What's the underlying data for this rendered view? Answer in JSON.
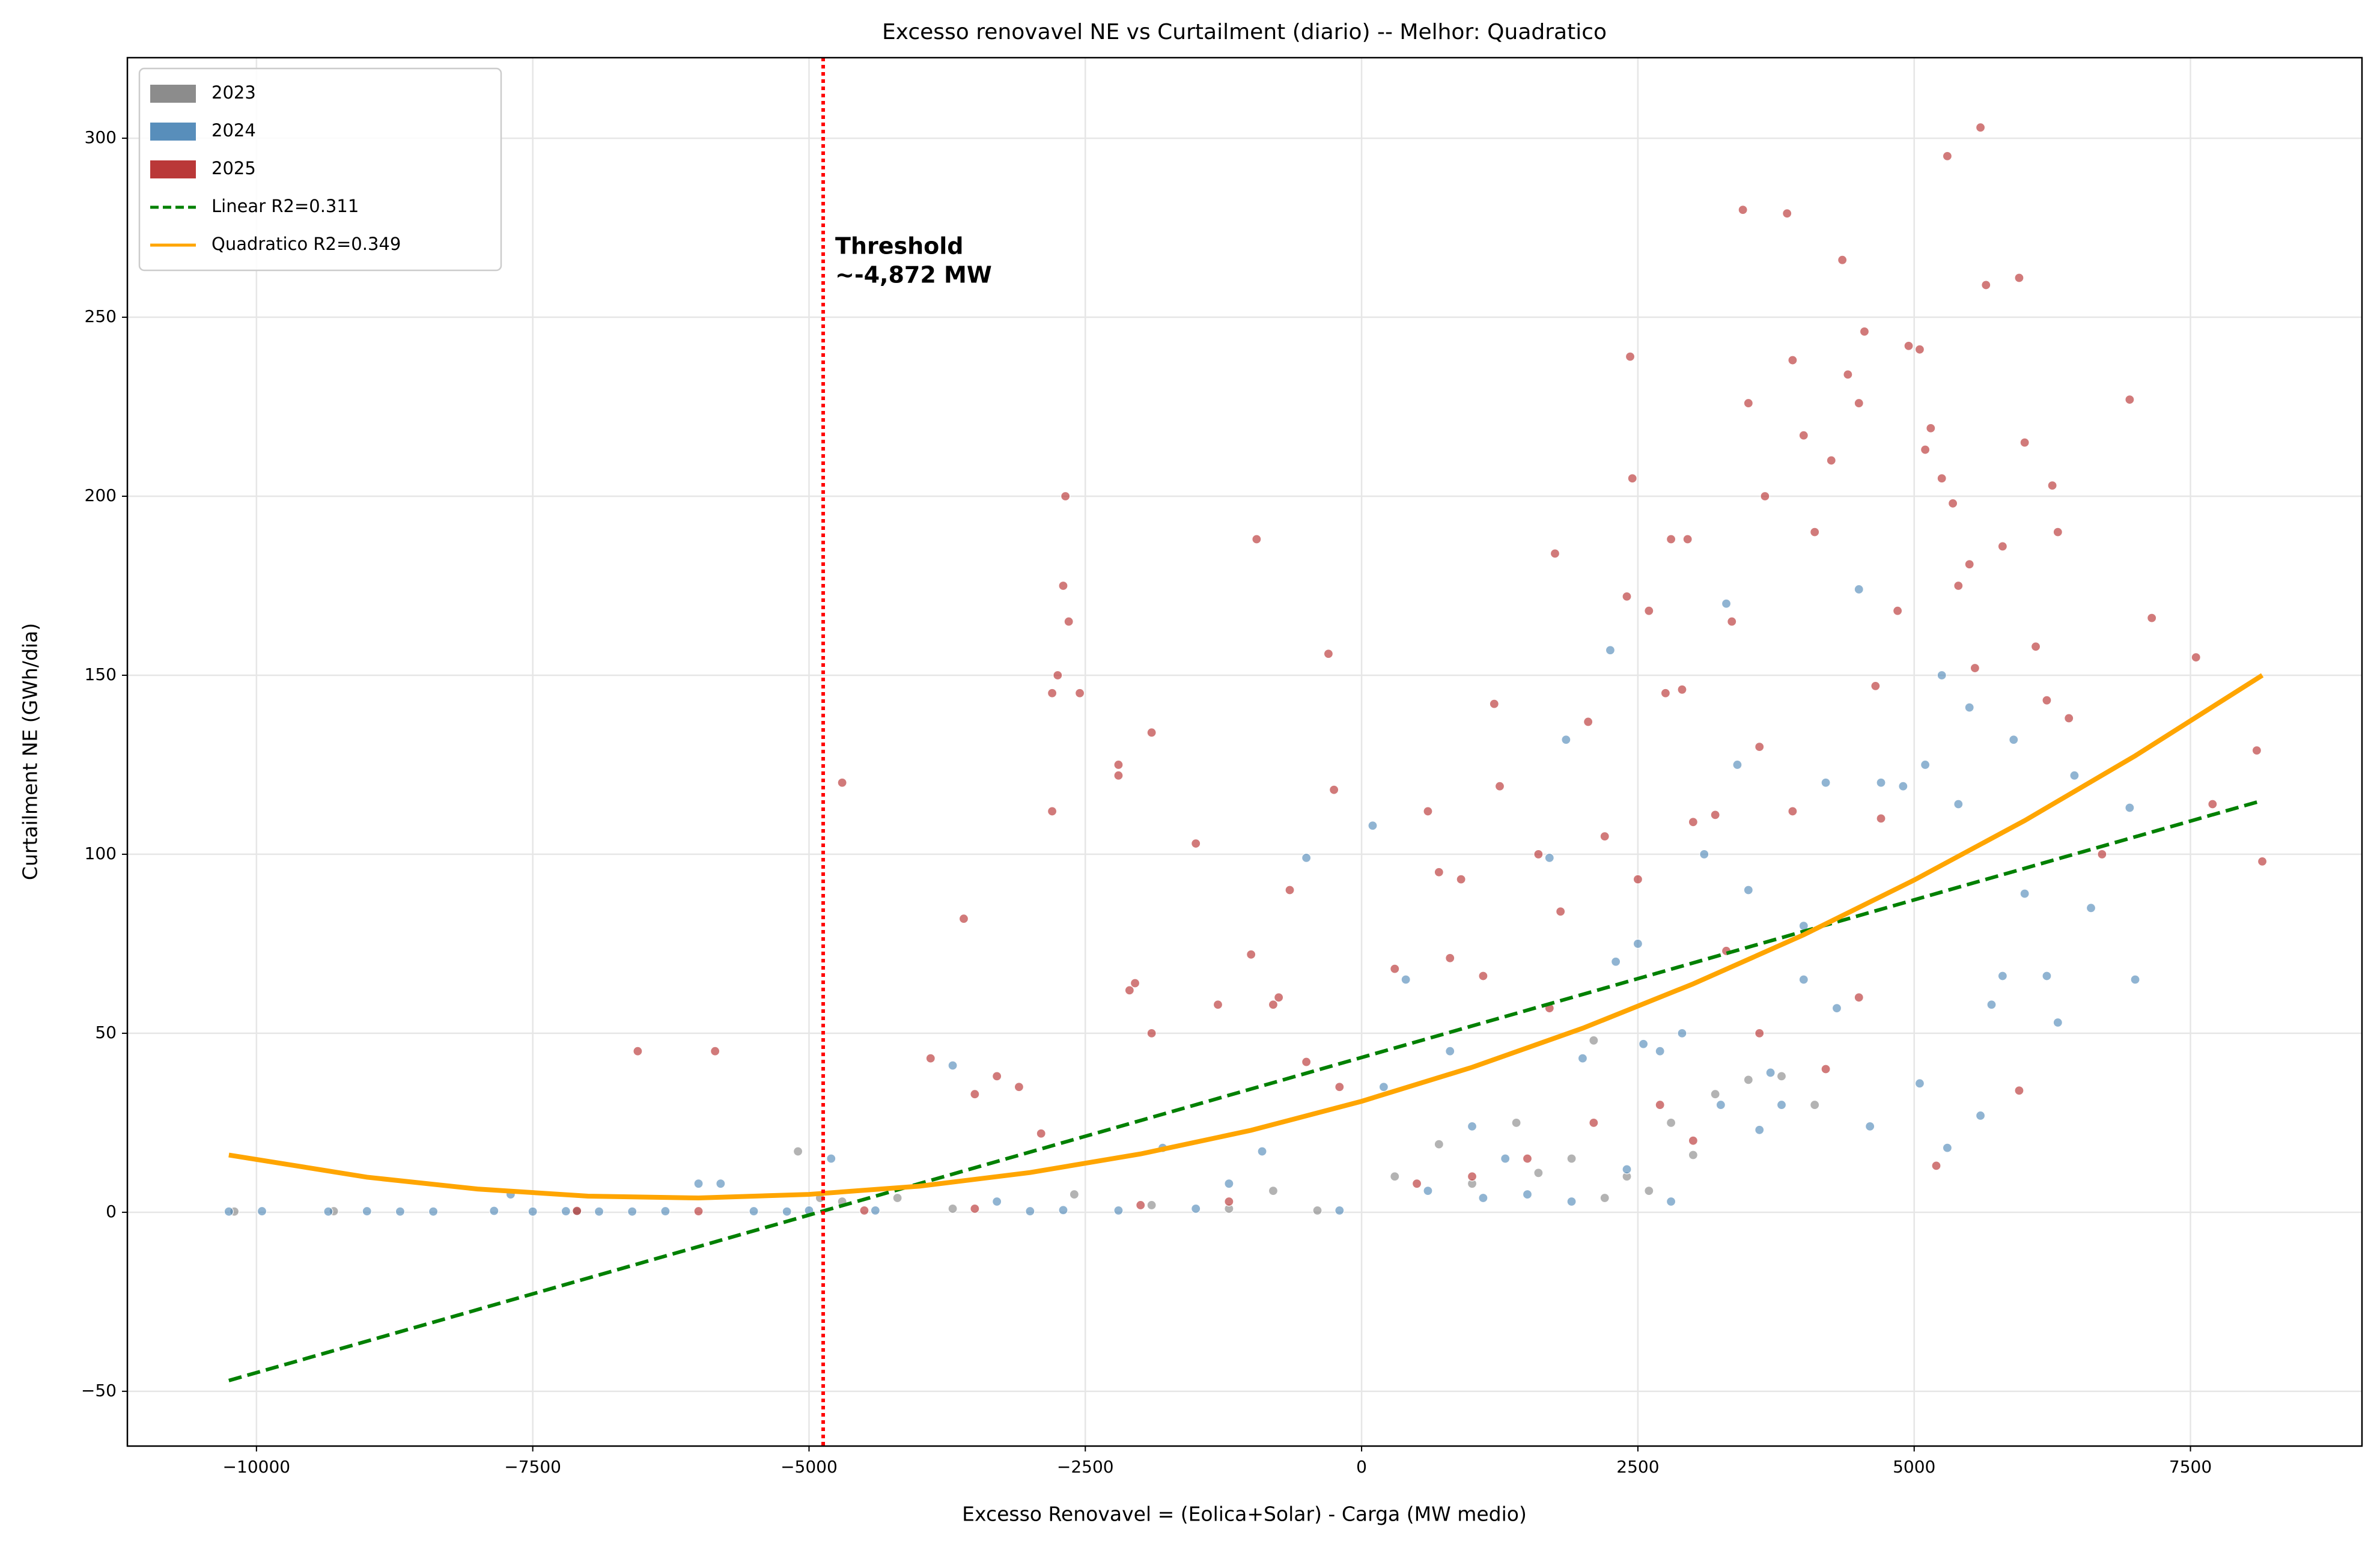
{
  "chart_data": {
    "type": "scatter",
    "title": "Excesso renovavel NE vs Curtailment (diario) -- Melhor: Quadratico",
    "x_label": "Excesso Renovavel = (Eolica+Solar) - Carga (MW medio)",
    "y_label": "Curtailment NE (GWh/dia)",
    "xlim": [
      -11168,
      9052
    ],
    "ylim": [
      -65.3,
      322.5
    ],
    "xticks": [
      {
        "value": -10000,
        "label": "−10000"
      },
      {
        "value": -7500,
        "label": "−7500"
      },
      {
        "value": -5000,
        "label": "−5000"
      },
      {
        "value": -2500,
        "label": "−2500"
      },
      0,
      2500,
      5000,
      7500
    ],
    "yticks": [
      {
        "value": -50,
        "label": "−50"
      },
      0,
      50,
      100,
      150,
      200,
      250,
      300
    ],
    "grid": true,
    "legend": "upper left",
    "threshold": {
      "x": -4872,
      "color": "#ff0000",
      "text": [
        "Threshold",
        "~-4,872 MW"
      ]
    },
    "series": [
      {
        "name": "2023",
        "type": "scatter",
        "color": "#808080",
        "x": [
          -10200,
          -9300,
          -7100,
          -5100,
          -4900,
          -4700,
          -4200,
          -3700,
          -2600,
          -1900,
          -1200,
          -400,
          300,
          700,
          1000,
          1400,
          1900,
          2100,
          2400,
          2800,
          3200,
          3500,
          3800,
          4100,
          3000,
          1600,
          2600,
          2200,
          -800
        ],
        "values": [
          0.2,
          0.3,
          0.2,
          17,
          4,
          3,
          4,
          1,
          5,
          2,
          1,
          0.5,
          10,
          19,
          8,
          25,
          15,
          48,
          10,
          25,
          33,
          37,
          38,
          30,
          16,
          11,
          6,
          4,
          6
        ]
      },
      {
        "name": "2024",
        "type": "scatter",
        "color": "#4682b4",
        "x": [
          -10250,
          -9950,
          -9350,
          -9000,
          -8700,
          -8400,
          -7850,
          -7700,
          -7500,
          -7200,
          -6900,
          -6600,
          -6300,
          -6000,
          -5800,
          -5500,
          -5200,
          -5000,
          -4800,
          -4400,
          -3700,
          -3300,
          -3000,
          -2700,
          -2200,
          -1800,
          -1500,
          -1200,
          -900,
          -500,
          -200,
          100,
          200,
          400,
          800,
          1000,
          1300,
          1500,
          1700,
          1850,
          2000,
          2250,
          2300,
          2500,
          2700,
          2900,
          3100,
          3300,
          3400,
          3600,
          3800,
          4000,
          4200,
          4500,
          4700,
          4900,
          5100,
          5250,
          5400,
          5500,
          5600,
          5700,
          5900,
          6000,
          6200,
          6450,
          6600,
          6950,
          7000,
          4300,
          3700,
          2800,
          2400,
          1900,
          1100,
          600,
          5300,
          5800,
          4600,
          3250,
          2550,
          6300,
          5050,
          4000,
          3500
        ],
        "values": [
          0.2,
          0.3,
          0.2,
          0.3,
          0.2,
          0.2,
          0.4,
          5,
          0.2,
          0.3,
          0.2,
          0.2,
          0.3,
          8,
          8,
          0.3,
          0.2,
          0.5,
          15,
          0.5,
          41,
          3,
          0.3,
          0.6,
          0.5,
          18,
          1,
          8,
          17,
          99,
          0.5,
          108,
          35,
          65,
          45,
          24,
          15,
          5,
          99,
          132,
          43,
          157,
          70,
          75,
          45,
          50,
          100,
          170,
          125,
          23,
          30,
          80,
          120,
          174,
          120,
          119,
          125,
          150,
          114,
          141,
          27,
          58,
          132,
          89,
          66,
          122,
          85,
          113,
          65,
          57,
          39,
          3,
          12,
          3,
          4,
          6,
          18,
          66,
          24,
          30,
          47,
          53,
          36,
          65,
          90
        ]
      },
      {
        "name": "2025",
        "type": "scatter",
        "color": "#b22222",
        "x": [
          -6550,
          -5850,
          -4700,
          -3600,
          -3900,
          -3500,
          -3300,
          -3100,
          -2800,
          -2750,
          -2700,
          -2680,
          -2650,
          -2550,
          -2800,
          -2900,
          -2200,
          -2200,
          -2100,
          -2050,
          -1900,
          -1900,
          -1500,
          -1300,
          -1000,
          -950,
          -800,
          -750,
          -650,
          -300,
          -250,
          300,
          600,
          700,
          900,
          1200,
          1250,
          1600,
          1750,
          1800,
          2050,
          2200,
          2400,
          2430,
          2450,
          2500,
          2600,
          2750,
          2800,
          2950,
          3000,
          3200,
          3350,
          3450,
          3500,
          3600,
          3650,
          3850,
          3900,
          4000,
          4100,
          4250,
          4350,
          4400,
          4500,
          4550,
          4650,
          4850,
          4950,
          5050,
          5100,
          5150,
          5250,
          5350,
          5400,
          5500,
          5550,
          5600,
          5650,
          5950,
          6000,
          6250,
          6300,
          6100,
          6400,
          6950,
          7150,
          7550,
          7700,
          8100,
          8150,
          5300,
          4700,
          3900,
          3600,
          4200,
          3000,
          2700,
          2100,
          1500,
          1000,
          500,
          -1200,
          -2000,
          -3500,
          -4500,
          -6000,
          -7100,
          4500,
          5800,
          6200,
          6700,
          5200,
          5950,
          3300,
          2900,
          800,
          1100,
          1700,
          -500,
          -200
        ],
        "values": [
          45,
          45,
          120,
          82,
          43,
          33,
          38,
          35,
          145,
          150,
          175,
          200,
          165,
          145,
          112,
          22,
          125,
          122,
          62,
          64,
          134,
          50,
          103,
          58,
          72,
          188,
          58,
          60,
          90,
          156,
          118,
          68,
          112,
          95,
          93,
          142,
          119,
          100,
          184,
          84,
          137,
          105,
          172,
          239,
          205,
          93,
          168,
          145,
          188,
          188,
          109,
          111,
          165,
          280,
          226,
          130,
          200,
          279,
          238,
          217,
          190,
          210,
          266,
          234,
          226,
          246,
          147,
          168,
          242,
          241,
          213,
          219,
          205,
          198,
          175,
          181,
          152,
          303,
          259,
          261,
          215,
          203,
          190,
          158,
          138,
          227,
          166,
          155,
          114,
          129,
          98,
          295,
          110,
          112,
          50,
          40,
          20,
          30,
          25,
          15,
          10,
          8,
          3,
          2,
          1,
          0.5,
          0.3,
          0.4,
          60,
          186,
          143,
          100,
          13,
          34,
          73,
          146,
          71,
          66,
          57,
          42,
          35
        ]
      },
      {
        "name": "Linear R2=0.311",
        "type": "line",
        "dash": true,
        "color": "#008000",
        "x": [
          -10250,
          8150
        ],
        "values": [
          -47,
          115
        ]
      },
      {
        "name": "Quadratico R2=0.349",
        "type": "line",
        "dash": false,
        "color": "#ffa500",
        "x": [
          -10250,
          -9000,
          -8000,
          -7000,
          -6000,
          -5000,
          -4000,
          -3000,
          -2000,
          -1000,
          0,
          1000,
          2000,
          3000,
          4000,
          5000,
          6000,
          7000,
          8150
        ],
        "values": [
          16.0,
          9.8,
          6.5,
          4.5,
          4.0,
          5.0,
          7.3,
          11.1,
          16.3,
          22.9,
          31,
          40.5,
          51.4,
          63.8,
          77.5,
          92.8,
          109.4,
          127.5,
          150.0
        ]
      }
    ]
  }
}
